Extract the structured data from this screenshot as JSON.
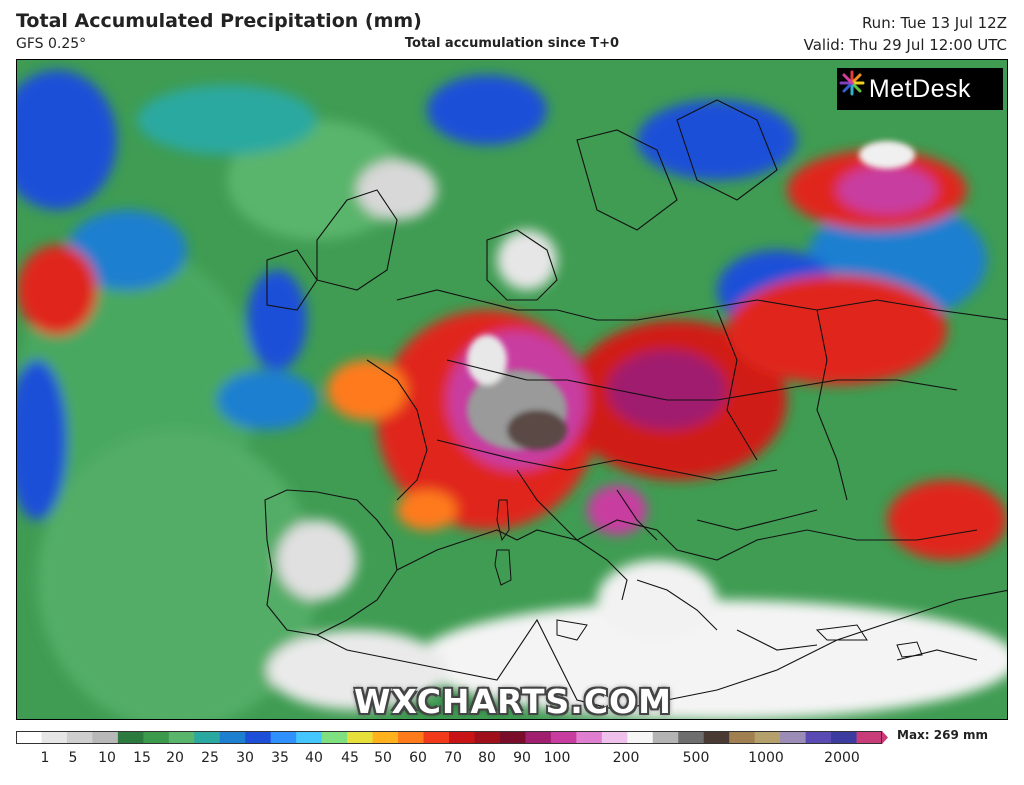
{
  "header": {
    "title": "Total Accumulated Precipitation (mm)",
    "model": "GFS 0.25°",
    "subtitle": "Total accumulation since T+0",
    "run": "Run: Tue 13 Jul 12Z",
    "valid": "Valid: Thu 29 Jul 12:00 UTC"
  },
  "logo": {
    "text": "MetDesk",
    "icon": "metdesk-burst-icon"
  },
  "watermark": "WXCHARTS.COM",
  "colorbar": {
    "tick_labels": [
      "1",
      "5",
      "10",
      "15",
      "20",
      "25",
      "30",
      "35",
      "40",
      "45",
      "50",
      "60",
      "70",
      "80",
      "90",
      "100",
      "200",
      "500",
      "1000",
      "2000"
    ],
    "colors": [
      "#ffffff",
      "#e6e6e6",
      "#cfcfcf",
      "#b8b8b8",
      "#2c7a3d",
      "#3c9a4c",
      "#5ab56c",
      "#2aa9a0",
      "#1d7fd0",
      "#1e4fd8",
      "#2f90ff",
      "#44c6ff",
      "#7ee07e",
      "#e8e03a",
      "#ffb21c",
      "#ff7a1a",
      "#f03a1a",
      "#c81414",
      "#a0101a",
      "#7a0e2a",
      "#a01f6e",
      "#c83ca0",
      "#e07ed0",
      "#f0c0ec",
      "#f6f6f6",
      "#b4b4b4",
      "#6e6e6e",
      "#4a3a34",
      "#a08050",
      "#b4a06a",
      "#9c8cb8",
      "#5a4ab4",
      "#3c3ca0",
      "#c83c7a"
    ]
  },
  "max_label": "Max: 269 mm"
}
